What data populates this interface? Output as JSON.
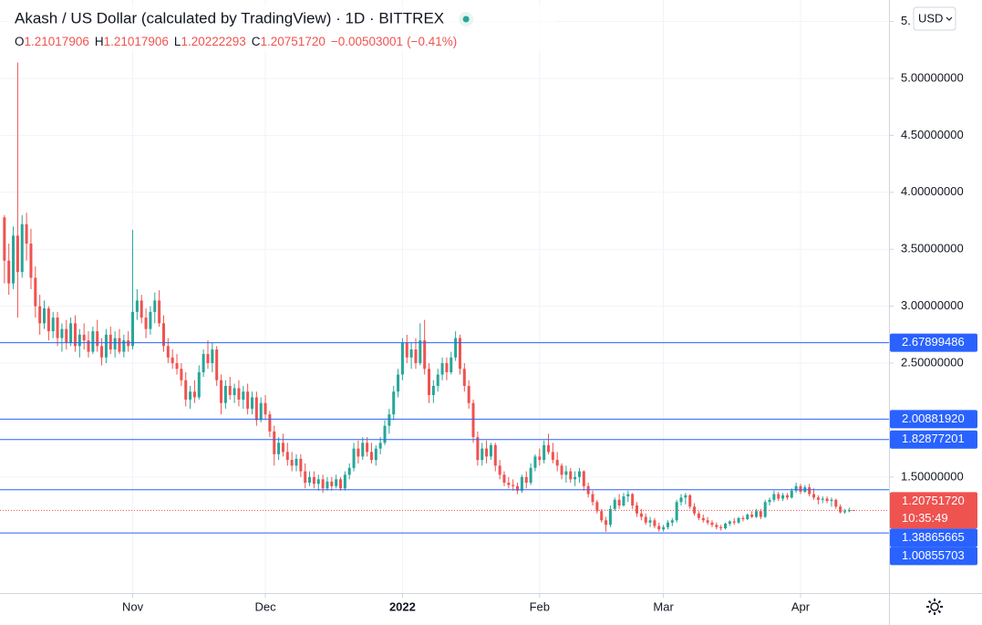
{
  "chart_data": {
    "type": "candlestick",
    "title": "Akash / US Dollar (calculated by TradingView) · 1D · BITTREX",
    "legend": [
      {
        "key": "O",
        "value": "1.21017906"
      },
      {
        "key": "H",
        "value": "1.21017906"
      },
      {
        "key": "L",
        "value": "1.20222293"
      },
      {
        "key": "C",
        "value": "1.20751720"
      }
    ],
    "change": "−0.00503001",
    "change_percent": "(−0.41%)",
    "currency": "USD",
    "colors": {
      "up": "#26a69a",
      "down": "#ef5350",
      "line": "#2962ff"
    },
    "xlim": [
      -1,
      200
    ],
    "xticks": [
      {
        "value": 29,
        "label": "Nov"
      },
      {
        "value": 59,
        "label": "Dec"
      },
      {
        "value": 90,
        "label": "2022"
      },
      {
        "value": 121,
        "label": "Feb"
      },
      {
        "value": 149,
        "label": "Mar"
      },
      {
        "value": 180,
        "label": "Apr"
      }
    ],
    "ylim": [
      0.481,
      5.689
    ],
    "yticks": [
      {
        "value": 5.5,
        "label": "5."
      },
      {
        "value": 5,
        "label": "5.00000000"
      },
      {
        "value": 4.5,
        "label": "4.50000000"
      },
      {
        "value": 4,
        "label": "4.00000000"
      },
      {
        "value": 3.5,
        "label": "3.50000000"
      },
      {
        "value": 3,
        "label": "3.00000000"
      },
      {
        "value": 2.5,
        "label": "2.50000000"
      },
      {
        "value": 1.5,
        "label": "1.50000000"
      }
    ],
    "grid": true,
    "hlines": [
      {
        "value": 2.67899486,
        "label": "2.67899486"
      },
      {
        "value": 2.0088192,
        "label": "2.00881920"
      },
      {
        "value": 1.82877201,
        "label": "1.82877201"
      },
      {
        "value": 1.38865665,
        "label": "1.38865665"
      },
      {
        "value": 1.00855703,
        "label": "1.00855703"
      }
    ],
    "last_price": {
      "value": 1.2075172,
      "label": "1.20751720"
    },
    "countdown": "10:35:49",
    "ohlc": [
      [
        3.78,
        3.8,
        3.2,
        3.4
      ],
      [
        3.4,
        3.55,
        3.1,
        3.2
      ],
      [
        3.2,
        3.7,
        3.15,
        3.62
      ],
      [
        3.62,
        5.14,
        2.9,
        3.3
      ],
      [
        3.3,
        3.8,
        3.25,
        3.72
      ],
      [
        3.72,
        3.82,
        3.4,
        3.55
      ],
      [
        3.55,
        3.68,
        3.15,
        3.25
      ],
      [
        3.25,
        3.35,
        2.9,
        3.0
      ],
      [
        3.0,
        3.1,
        2.75,
        2.85
      ],
      [
        2.85,
        3.05,
        2.8,
        2.98
      ],
      [
        2.98,
        3.0,
        2.7,
        2.78
      ],
      [
        2.78,
        2.95,
        2.72,
        2.9
      ],
      [
        2.9,
        2.95,
        2.65,
        2.72
      ],
      [
        2.72,
        2.85,
        2.6,
        2.8
      ],
      [
        2.8,
        2.88,
        2.62,
        2.68
      ],
      [
        2.68,
        2.9,
        2.65,
        2.85
      ],
      [
        2.85,
        2.92,
        2.6,
        2.65
      ],
      [
        2.65,
        2.8,
        2.55,
        2.75
      ],
      [
        2.75,
        2.85,
        2.62,
        2.7
      ],
      [
        2.7,
        2.78,
        2.55,
        2.6
      ],
      [
        2.6,
        2.82,
        2.58,
        2.78
      ],
      [
        2.78,
        2.88,
        2.6,
        2.65
      ],
      [
        2.65,
        2.72,
        2.48,
        2.55
      ],
      [
        2.55,
        2.8,
        2.5,
        2.75
      ],
      [
        2.75,
        2.82,
        2.58,
        2.62
      ],
      [
        2.62,
        2.78,
        2.55,
        2.72
      ],
      [
        2.72,
        2.8,
        2.58,
        2.6
      ],
      [
        2.6,
        2.75,
        2.55,
        2.7
      ],
      [
        2.7,
        2.78,
        2.6,
        2.65
      ],
      [
        2.65,
        3.67,
        2.62,
        2.95
      ],
      [
        2.95,
        3.15,
        2.88,
        3.05
      ],
      [
        3.05,
        3.1,
        2.85,
        2.9
      ],
      [
        2.9,
        2.98,
        2.72,
        2.8
      ],
      [
        2.8,
        3.0,
        2.75,
        2.95
      ],
      [
        2.95,
        3.12,
        2.85,
        3.05
      ],
      [
        3.05,
        3.14,
        2.82,
        2.85
      ],
      [
        2.85,
        2.92,
        2.6,
        2.65
      ],
      [
        2.65,
        2.72,
        2.5,
        2.55
      ],
      [
        2.55,
        2.62,
        2.45,
        2.5
      ],
      [
        2.5,
        2.58,
        2.4,
        2.45
      ],
      [
        2.45,
        2.5,
        2.3,
        2.35
      ],
      [
        2.35,
        2.42,
        2.12,
        2.18
      ],
      [
        2.18,
        2.3,
        2.1,
        2.25
      ],
      [
        2.25,
        2.35,
        2.15,
        2.2
      ],
      [
        2.2,
        2.48,
        2.18,
        2.42
      ],
      [
        2.42,
        2.62,
        2.38,
        2.58
      ],
      [
        2.58,
        2.7,
        2.45,
        2.5
      ],
      [
        2.5,
        2.68,
        2.42,
        2.62
      ],
      [
        2.62,
        2.65,
        2.3,
        2.35
      ],
      [
        2.35,
        2.4,
        2.05,
        2.15
      ],
      [
        2.15,
        2.35,
        2.1,
        2.3
      ],
      [
        2.3,
        2.38,
        2.18,
        2.22
      ],
      [
        2.22,
        2.32,
        2.15,
        2.28
      ],
      [
        2.28,
        2.35,
        2.12,
        2.18
      ],
      [
        2.18,
        2.3,
        2.1,
        2.25
      ],
      [
        2.25,
        2.32,
        2.05,
        2.1
      ],
      [
        2.1,
        2.25,
        2.05,
        2.2
      ],
      [
        2.2,
        2.25,
        1.95,
        2.0
      ],
      [
        2.0,
        2.2,
        1.98,
        2.15
      ],
      [
        2.15,
        2.22,
        2.0,
        2.05
      ],
      [
        2.05,
        2.08,
        1.85,
        1.9
      ],
      [
        1.9,
        1.95,
        1.6,
        1.7
      ],
      [
        1.7,
        1.85,
        1.65,
        1.8
      ],
      [
        1.8,
        1.88,
        1.68,
        1.72
      ],
      [
        1.72,
        1.8,
        1.6,
        1.65
      ],
      [
        1.65,
        1.72,
        1.55,
        1.6
      ],
      [
        1.6,
        1.7,
        1.55,
        1.66
      ],
      [
        1.66,
        1.7,
        1.5,
        1.55
      ],
      [
        1.55,
        1.62,
        1.4,
        1.45
      ],
      [
        1.45,
        1.55,
        1.42,
        1.5
      ],
      [
        1.5,
        1.55,
        1.4,
        1.44
      ],
      [
        1.44,
        1.52,
        1.38,
        1.48
      ],
      [
        1.48,
        1.52,
        1.36,
        1.4
      ],
      [
        1.4,
        1.5,
        1.38,
        1.46
      ],
      [
        1.46,
        1.5,
        1.38,
        1.42
      ],
      [
        1.42,
        1.52,
        1.4,
        1.48
      ],
      [
        1.48,
        1.5,
        1.38,
        1.4
      ],
      [
        1.4,
        1.55,
        1.38,
        1.52
      ],
      [
        1.52,
        1.62,
        1.48,
        1.58
      ],
      [
        1.58,
        1.8,
        1.55,
        1.75
      ],
      [
        1.75,
        1.82,
        1.62,
        1.68
      ],
      [
        1.68,
        1.85,
        1.65,
        1.8
      ],
      [
        1.8,
        1.85,
        1.68,
        1.72
      ],
      [
        1.72,
        1.8,
        1.62,
        1.65
      ],
      [
        1.65,
        1.78,
        1.6,
        1.75
      ],
      [
        1.75,
        1.85,
        1.7,
        1.8
      ],
      [
        1.8,
        2.0,
        1.78,
        1.95
      ],
      [
        1.95,
        2.1,
        1.88,
        2.05
      ],
      [
        2.05,
        2.3,
        2.0,
        2.25
      ],
      [
        2.25,
        2.45,
        2.2,
        2.4
      ],
      [
        2.4,
        2.72,
        2.35,
        2.68
      ],
      [
        2.68,
        2.75,
        2.5,
        2.55
      ],
      [
        2.55,
        2.68,
        2.45,
        2.62
      ],
      [
        2.62,
        2.72,
        2.45,
        2.5
      ],
      [
        2.5,
        2.85,
        2.48,
        2.7
      ],
      [
        2.7,
        2.88,
        2.4,
        2.45
      ],
      [
        2.45,
        2.5,
        2.15,
        2.22
      ],
      [
        2.22,
        2.35,
        2.15,
        2.3
      ],
      [
        2.3,
        2.45,
        2.25,
        2.4
      ],
      [
        2.4,
        2.55,
        2.35,
        2.5
      ],
      [
        2.5,
        2.55,
        2.35,
        2.42
      ],
      [
        2.42,
        2.6,
        2.4,
        2.55
      ],
      [
        2.55,
        2.78,
        2.52,
        2.72
      ],
      [
        2.72,
        2.75,
        2.4,
        2.45
      ],
      [
        2.45,
        2.5,
        2.25,
        2.3
      ],
      [
        2.3,
        2.35,
        2.1,
        2.15
      ],
      [
        2.15,
        2.18,
        1.8,
        1.85
      ],
      [
        1.85,
        1.9,
        1.6,
        1.65
      ],
      [
        1.65,
        1.8,
        1.6,
        1.75
      ],
      [
        1.75,
        1.82,
        1.62,
        1.68
      ],
      [
        1.68,
        1.8,
        1.65,
        1.78
      ],
      [
        1.78,
        1.8,
        1.55,
        1.6
      ],
      [
        1.6,
        1.65,
        1.48,
        1.52
      ],
      [
        1.52,
        1.55,
        1.42,
        1.45
      ],
      [
        1.45,
        1.5,
        1.4,
        1.43
      ],
      [
        1.43,
        1.48,
        1.38,
        1.42
      ],
      [
        1.42,
        1.45,
        1.35,
        1.38
      ],
      [
        1.38,
        1.52,
        1.36,
        1.5
      ],
      [
        1.5,
        1.55,
        1.4,
        1.45
      ],
      [
        1.45,
        1.62,
        1.43,
        1.58
      ],
      [
        1.58,
        1.7,
        1.55,
        1.68
      ],
      [
        1.68,
        1.75,
        1.6,
        1.65
      ],
      [
        1.65,
        1.82,
        1.62,
        1.78
      ],
      [
        1.78,
        1.88,
        1.7,
        1.72
      ],
      [
        1.72,
        1.8,
        1.62,
        1.65
      ],
      [
        1.65,
        1.72,
        1.55,
        1.6
      ],
      [
        1.6,
        1.62,
        1.48,
        1.52
      ],
      [
        1.52,
        1.6,
        1.45,
        1.55
      ],
      [
        1.55,
        1.58,
        1.45,
        1.48
      ],
      [
        1.48,
        1.55,
        1.42,
        1.5
      ],
      [
        1.5,
        1.58,
        1.45,
        1.55
      ],
      [
        1.55,
        1.56,
        1.38,
        1.42
      ],
      [
        1.42,
        1.45,
        1.32,
        1.35
      ],
      [
        1.35,
        1.38,
        1.25,
        1.28
      ],
      [
        1.28,
        1.3,
        1.18,
        1.2
      ],
      [
        1.2,
        1.22,
        1.1,
        1.12
      ],
      [
        1.12,
        1.15,
        1.02,
        1.08
      ],
      [
        1.08,
        1.25,
        1.06,
        1.22
      ],
      [
        1.22,
        1.32,
        1.2,
        1.3
      ],
      [
        1.3,
        1.35,
        1.22,
        1.25
      ],
      [
        1.25,
        1.36,
        1.24,
        1.33
      ],
      [
        1.33,
        1.38,
        1.28,
        1.35
      ],
      [
        1.35,
        1.36,
        1.22,
        1.25
      ],
      [
        1.25,
        1.28,
        1.15,
        1.18
      ],
      [
        1.18,
        1.22,
        1.12,
        1.15
      ],
      [
        1.15,
        1.18,
        1.08,
        1.1
      ],
      [
        1.1,
        1.15,
        1.06,
        1.12
      ],
      [
        1.12,
        1.14,
        1.05,
        1.07
      ],
      [
        1.07,
        1.1,
        1.02,
        1.04
      ],
      [
        1.04,
        1.08,
        1.02,
        1.06
      ],
      [
        1.06,
        1.12,
        1.04,
        1.1
      ],
      [
        1.1,
        1.14,
        1.07,
        1.12
      ],
      [
        1.12,
        1.3,
        1.1,
        1.28
      ],
      [
        1.28,
        1.35,
        1.25,
        1.32
      ],
      [
        1.32,
        1.36,
        1.26,
        1.34
      ],
      [
        1.34,
        1.35,
        1.22,
        1.24
      ],
      [
        1.24,
        1.27,
        1.16,
        1.18
      ],
      [
        1.18,
        1.2,
        1.12,
        1.14
      ],
      [
        1.14,
        1.17,
        1.1,
        1.12
      ],
      [
        1.12,
        1.15,
        1.08,
        1.1
      ],
      [
        1.1,
        1.12,
        1.06,
        1.08
      ],
      [
        1.08,
        1.1,
        1.04,
        1.06
      ],
      [
        1.06,
        1.08,
        1.03,
        1.05
      ],
      [
        1.05,
        1.1,
        1.04,
        1.09
      ],
      [
        1.09,
        1.12,
        1.07,
        1.11
      ],
      [
        1.11,
        1.14,
        1.08,
        1.1
      ],
      [
        1.1,
        1.15,
        1.09,
        1.14
      ],
      [
        1.14,
        1.16,
        1.11,
        1.13
      ],
      [
        1.13,
        1.18,
        1.12,
        1.17
      ],
      [
        1.17,
        1.2,
        1.14,
        1.15
      ],
      [
        1.15,
        1.22,
        1.14,
        1.2
      ],
      [
        1.2,
        1.22,
        1.13,
        1.15
      ],
      [
        1.15,
        1.3,
        1.14,
        1.28
      ],
      [
        1.28,
        1.32,
        1.25,
        1.3
      ],
      [
        1.3,
        1.38,
        1.28,
        1.35
      ],
      [
        1.35,
        1.37,
        1.29,
        1.31
      ],
      [
        1.31,
        1.36,
        1.29,
        1.34
      ],
      [
        1.34,
        1.36,
        1.3,
        1.32
      ],
      [
        1.32,
        1.4,
        1.31,
        1.38
      ],
      [
        1.38,
        1.45,
        1.36,
        1.42
      ],
      [
        1.42,
        1.44,
        1.35,
        1.37
      ],
      [
        1.37,
        1.43,
        1.36,
        1.41
      ],
      [
        1.41,
        1.44,
        1.33,
        1.35
      ],
      [
        1.35,
        1.4,
        1.3,
        1.32
      ],
      [
        1.32,
        1.34,
        1.26,
        1.3
      ],
      [
        1.3,
        1.33,
        1.27,
        1.31
      ],
      [
        1.31,
        1.33,
        1.27,
        1.29
      ],
      [
        1.29,
        1.32,
        1.24,
        1.3
      ],
      [
        1.3,
        1.31,
        1.22,
        1.24
      ],
      [
        1.24,
        1.26,
        1.18,
        1.19
      ],
      [
        1.19,
        1.22,
        1.18,
        1.2
      ],
      [
        1.2,
        1.23,
        1.19,
        1.21
      ],
      [
        1.21017906,
        1.21017906,
        1.20222293,
        1.2075172
      ]
    ]
  }
}
